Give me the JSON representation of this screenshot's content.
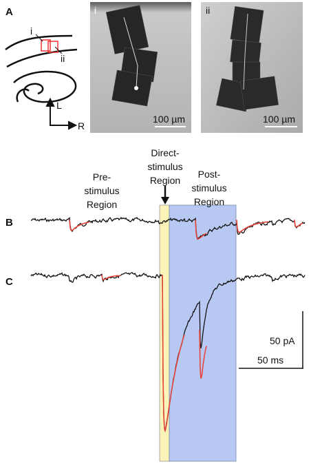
{
  "panel_a": {
    "label": "A",
    "schematic": {
      "box_labels": [
        "i",
        "ii"
      ],
      "axis_labels": [
        "L",
        "R"
      ]
    },
    "images": [
      {
        "label": "i",
        "scale_bar": "100 µm"
      },
      {
        "label": "ii",
        "scale_bar": "100 µm"
      }
    ]
  },
  "panel_traces": {
    "regions": [
      {
        "lines": [
          "Pre-",
          "stimulus",
          "Region"
        ]
      },
      {
        "lines": [
          "Direct-",
          "stimulus",
          "Region"
        ]
      },
      {
        "lines": [
          "Post-",
          "stimulus",
          "Region"
        ]
      }
    ],
    "rows": [
      {
        "label": "B"
      },
      {
        "label": "C"
      }
    ],
    "scale_bars": {
      "current": "50 pA",
      "time": "50 ms"
    }
  }
}
